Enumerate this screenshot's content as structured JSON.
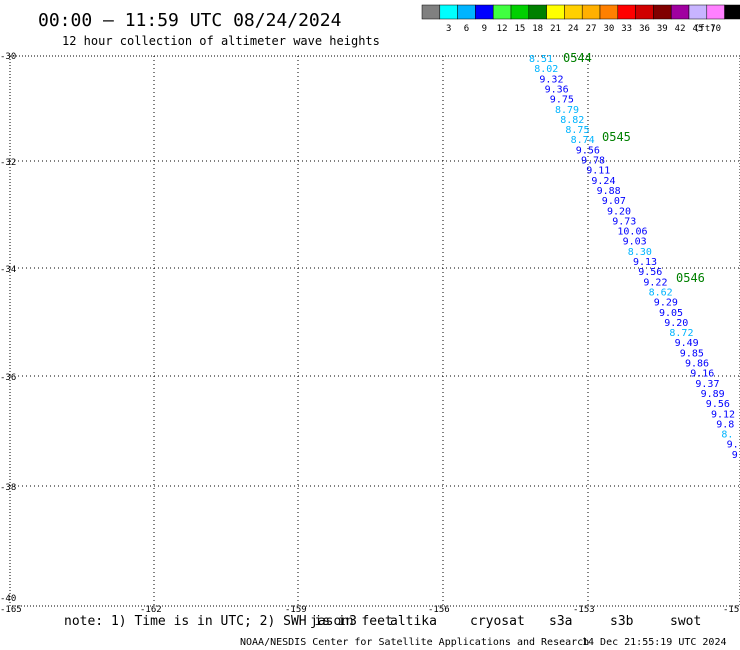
{
  "header": {
    "title": "00:00 – 11:59 UTC 08/24/2024",
    "subtitle": "12 hour collection of altimeter wave heights"
  },
  "colorbar": {
    "labels": [
      "3",
      "6",
      "9",
      "12",
      "15",
      "18",
      "21",
      "24",
      "27",
      "30",
      "33",
      "36",
      "39",
      "42",
      "45",
      "70"
    ],
    "unit": "(ft)",
    "colors": [
      "#808080",
      "#00ffff",
      "#00b4ff",
      "#0000ff",
      "#40ff40",
      "#00d000",
      "#008000",
      "#ffff00",
      "#ffd000",
      "#ffb000",
      "#ff8000",
      "#ff0000",
      "#d00000",
      "#800000",
      "#a000a0",
      "#c8b4ff",
      "#ff80ff",
      "#000000"
    ]
  },
  "axes": {
    "x_ticks": [
      "-165",
      "-162",
      "-159",
      "-156",
      "-153",
      "-15"
    ],
    "y_ticks": [
      "-30",
      "-32",
      "-34",
      "-36",
      "-38",
      "-40"
    ]
  },
  "passes": [
    {
      "id": "pass-0544",
      "label": "0544"
    },
    {
      "id": "pass-0545",
      "label": "0545"
    },
    {
      "id": "pass-0546",
      "label": "0546"
    }
  ],
  "observations": [
    {
      "text": "8.51",
      "color": "#00b4ff"
    },
    {
      "text": "8.02",
      "color": "#00b4ff"
    },
    {
      "text": "9.32",
      "color": "#0000ff"
    },
    {
      "text": "9.36",
      "color": "#0000ff"
    },
    {
      "text": "9.75",
      "color": "#0000ff"
    },
    {
      "text": "8.79",
      "color": "#00b4ff"
    },
    {
      "text": "8.82",
      "color": "#00b4ff"
    },
    {
      "text": "8.75",
      "color": "#00b4ff"
    },
    {
      "text": "8.74",
      "color": "#00b4ff"
    },
    {
      "text": "9.56",
      "color": "#0000ff"
    },
    {
      "text": "9.78",
      "color": "#0000ff"
    },
    {
      "text": "9.11",
      "color": "#0000ff"
    },
    {
      "text": "9.24",
      "color": "#0000ff"
    },
    {
      "text": "9.88",
      "color": "#0000ff"
    },
    {
      "text": "9.07",
      "color": "#0000ff"
    },
    {
      "text": "9.20",
      "color": "#0000ff"
    },
    {
      "text": "9.73",
      "color": "#0000ff"
    },
    {
      "text": "10.06",
      "color": "#0000ff"
    },
    {
      "text": "9.03",
      "color": "#0000ff"
    },
    {
      "text": "8.30",
      "color": "#00b4ff"
    },
    {
      "text": "9.13",
      "color": "#0000ff"
    },
    {
      "text": "9.56",
      "color": "#0000ff"
    },
    {
      "text": "9.22",
      "color": "#0000ff"
    },
    {
      "text": "8.62",
      "color": "#00b4ff"
    },
    {
      "text": "9.29",
      "color": "#0000ff"
    },
    {
      "text": "9.05",
      "color": "#0000ff"
    },
    {
      "text": "9.20",
      "color": "#0000ff"
    },
    {
      "text": "8.72",
      "color": "#00b4ff"
    },
    {
      "text": "9.49",
      "color": "#0000ff"
    },
    {
      "text": "9.85",
      "color": "#0000ff"
    },
    {
      "text": "9.86",
      "color": "#0000ff"
    },
    {
      "text": "9.16",
      "color": "#0000ff"
    },
    {
      "text": "9.37",
      "color": "#0000ff"
    },
    {
      "text": "9.89",
      "color": "#0000ff"
    },
    {
      "text": "9.56",
      "color": "#0000ff"
    },
    {
      "text": "9.12",
      "color": "#0000ff"
    },
    {
      "text": "9.8",
      "color": "#0000ff"
    },
    {
      "text": "8.",
      "color": "#00b4ff"
    },
    {
      "text": "9.",
      "color": "#0000ff"
    },
    {
      "text": "9",
      "color": "#0000ff"
    }
  ],
  "note": {
    "text": "note: 1) Time is in UTC; 2) SWH is in feet"
  },
  "legend": [
    {
      "label": "jason3",
      "color": "#008000"
    },
    {
      "label": "altika",
      "color": "#ffa500"
    },
    {
      "label": "cryosat",
      "color": "#ff0000"
    },
    {
      "label": "s3a",
      "color": "#a00000"
    },
    {
      "label": "s3b",
      "color": "#c8b4ff"
    },
    {
      "label": "swot",
      "color": "#ff80ff"
    }
  ],
  "footer": {
    "credit": "NOAA/NESDIS Center for Satellite Applications and Research",
    "timestamp": "14 Dec 21:55:19 UTC 2024"
  }
}
